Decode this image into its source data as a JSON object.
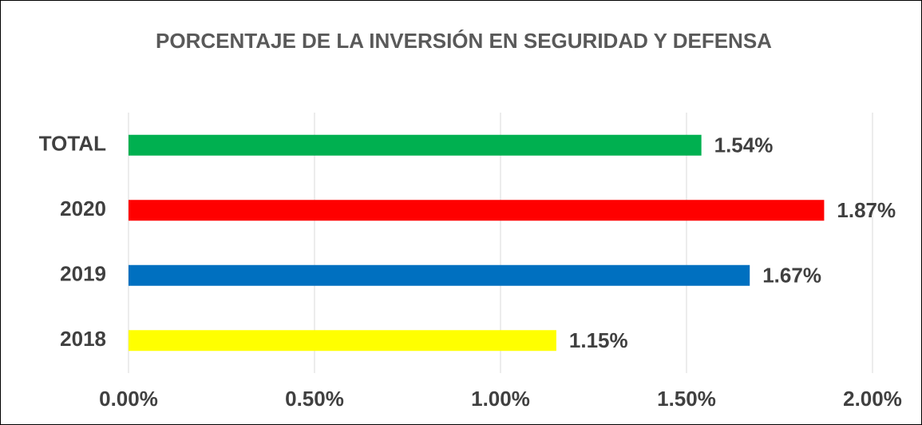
{
  "chart_data": {
    "type": "barh",
    "title": "PORCENTAJE DE LA INVERSIÓN EN SEGURIDAD Y DEFENSA",
    "categories": [
      "TOTAL",
      "2020",
      "2019",
      "2018"
    ],
    "values": [
      1.54,
      1.87,
      1.67,
      1.15
    ],
    "value_labels": [
      "1.54%",
      "1.87%",
      "1.67%",
      "1.15%"
    ],
    "colors": [
      "#00b050",
      "#ff0000",
      "#0070c0",
      "#ffff00"
    ],
    "xlim": [
      0,
      2
    ],
    "xticks": [
      {
        "value": 0,
        "label": "0.00%"
      },
      {
        "value": 0.5,
        "label": "0.50%"
      },
      {
        "value": 1,
        "label": "1.00%"
      },
      {
        "value": 1.5,
        "label": "1.50%"
      },
      {
        "value": 2,
        "label": "2.00%"
      }
    ],
    "grid": true
  }
}
